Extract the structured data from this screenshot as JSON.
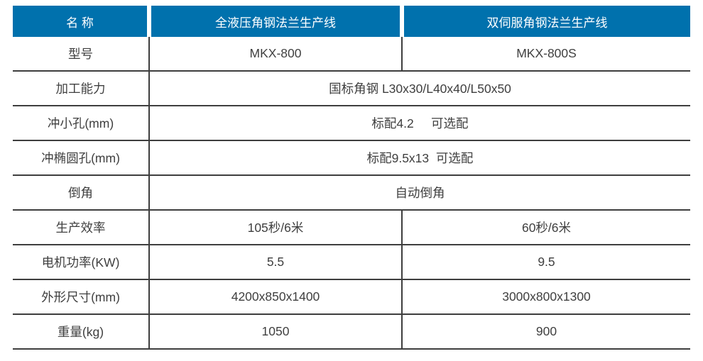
{
  "table": {
    "header": {
      "name": "名 称",
      "product1": "全液压角钢法兰生产线",
      "product2": "双伺服角钢法兰生产线"
    },
    "rows": [
      {
        "label": "型号",
        "col2": "MKX-800",
        "col3": "MKX-800S"
      },
      {
        "label": "加工能力",
        "value": "国标角钢 L30x30/L40x40/L50x50"
      },
      {
        "label": "冲小孔(mm)",
        "value": "标配4.2     可选配"
      },
      {
        "label": "冲椭圆孔(mm)",
        "value": "标配9.5x13  可选配"
      },
      {
        "label": "倒角",
        "value": "自动倒角"
      },
      {
        "label": "生产效率",
        "col2": "105秒/6米",
        "col3": "60秒/6米"
      },
      {
        "label": "电机功率(KW)",
        "col2": "5.5",
        "col3": "9.5"
      },
      {
        "label": "外形尺寸(mm)",
        "col2": "4200x850x1400",
        "col3": "3000x800x1300"
      },
      {
        "label": "重量(kg)",
        "col2": "1050",
        "col3": "900"
      }
    ]
  },
  "colors": {
    "header_bg": "#0071ad",
    "header_text": "#ffffff",
    "body_text": "#3f3f3f",
    "border": "#3e3e3e"
  }
}
